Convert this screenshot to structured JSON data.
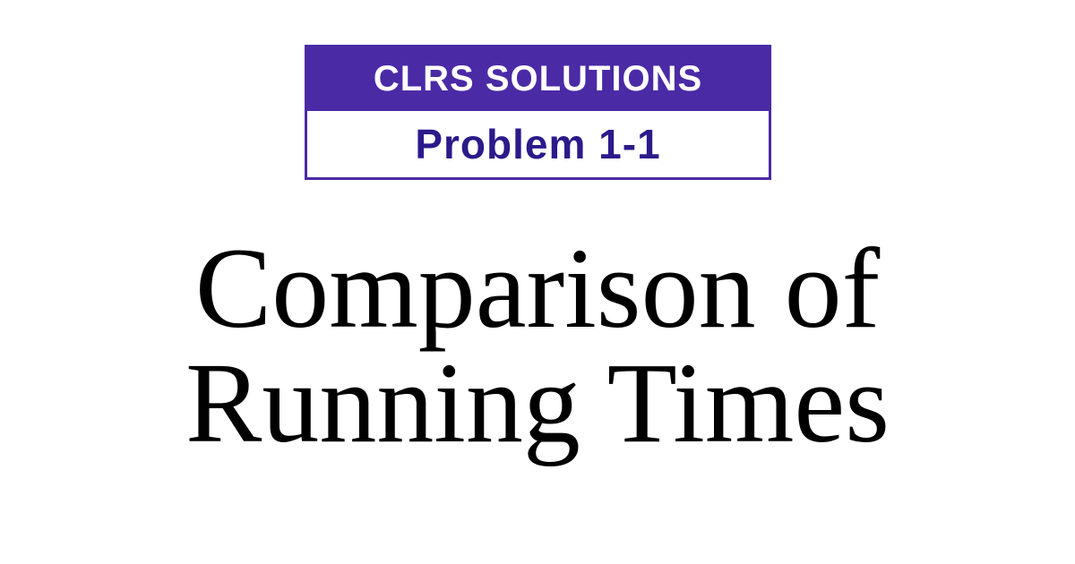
{
  "badge": {
    "header": "CLRS SOLUTIONS",
    "subheader": "Problem 1-1"
  },
  "title": {
    "line1": "Comparison of",
    "line2": "Running Times"
  },
  "colors": {
    "accent": "#4a2aa5",
    "subheader_text": "#2b1a8a",
    "background": "#ffffff",
    "title_text": "#000000"
  }
}
